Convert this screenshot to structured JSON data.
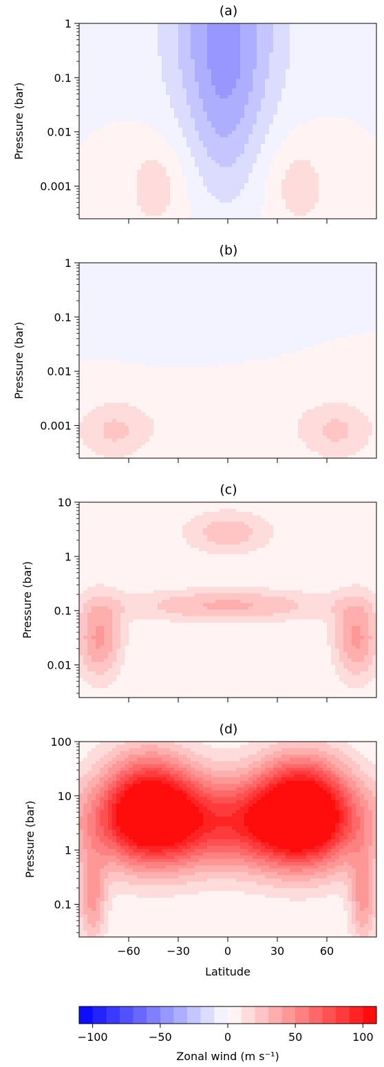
{
  "chart_data": [
    {
      "type": "heatmap",
      "title": "(a)",
      "ylabel": "Pressure (bar)",
      "xlabel": "",
      "xlim": [
        -90,
        90
      ],
      "ylim_bar": [
        1,
        0.00025
      ],
      "log_y": true,
      "y_ticks": [
        {
          "value": 0.001,
          "label": "0.001"
        },
        {
          "value": 0.01,
          "label": "0.01"
        },
        {
          "value": 0.1,
          "label": "0.1"
        },
        {
          "value": 1,
          "label": "1"
        }
      ],
      "x_ticks": [
        -60,
        -30,
        0,
        30,
        60
      ],
      "show_x_tick_labels": false,
      "features": [
        {
          "lat": -44,
          "p": 0.25,
          "u": 16,
          "slat": 13,
          "sdec": 0.6
        },
        {
          "lat": 43,
          "p": 0.25,
          "u": 16,
          "slat": 13,
          "sdec": 0.6
        },
        {
          "lat": -2,
          "p": 0.0003,
          "u": -40,
          "slat": 24,
          "sdec": 1.4
        },
        {
          "lat": -2,
          "p": 0.02,
          "u": -16,
          "slat": 14,
          "sdec": 1.1
        }
      ]
    },
    {
      "type": "heatmap",
      "title": "(b)",
      "ylabel": "Pressure (bar)",
      "xlabel": "",
      "xlim": [
        -90,
        90
      ],
      "ylim_bar": [
        1,
        0.00025
      ],
      "log_y": true,
      "y_ticks": [
        {
          "value": 0.001,
          "label": "0.001"
        },
        {
          "value": 0.01,
          "label": "0.01"
        },
        {
          "value": 0.1,
          "label": "0.1"
        },
        {
          "value": 1,
          "label": "1"
        }
      ],
      "x_ticks": [
        -60,
        -30,
        0,
        30,
        60
      ],
      "show_x_tick_labels": false,
      "features": [
        {
          "lat": -69,
          "p": 0.33,
          "u": 20,
          "slat": 16,
          "sdec": 0.4
        },
        {
          "lat": 66,
          "p": 0.33,
          "u": 20,
          "slat": 16,
          "sdec": 0.4
        },
        {
          "lat": 0,
          "p": 0.2,
          "u": 5,
          "slat": 60,
          "sdec": 0.35
        },
        {
          "lat": -40,
          "p": 0.001,
          "u": -4,
          "slat": 30,
          "sdec": 0.5
        }
      ]
    },
    {
      "type": "heatmap",
      "title": "(c)",
      "ylabel": "Pressure (bar)",
      "xlabel": "",
      "xlim": [
        -90,
        90
      ],
      "ylim_bar": [
        10,
        0.0025
      ],
      "log_y": true,
      "y_ticks": [
        {
          "value": 0.01,
          "label": "0.01"
        },
        {
          "value": 0.1,
          "label": "0.1"
        },
        {
          "value": 1,
          "label": "1"
        },
        {
          "value": 10,
          "label": "10"
        }
      ],
      "x_ticks": [
        -60,
        -30,
        0,
        30,
        60
      ],
      "show_x_tick_labels": false,
      "features": [
        {
          "lat": -78,
          "p": 0.8,
          "u": 42,
          "slat": 10,
          "sdec": 0.55
        },
        {
          "lat": 78,
          "p": 0.8,
          "u": 42,
          "slat": 10,
          "sdec": 0.55
        },
        {
          "lat": 0,
          "p": 0.2,
          "u": 32,
          "slat": 45,
          "sdec": 0.22
        },
        {
          "lat": 0,
          "p": 0.009,
          "u": 26,
          "slat": 20,
          "sdec": 0.3
        }
      ]
    },
    {
      "type": "heatmap",
      "title": "(d)",
      "ylabel": "Pressure (bar)",
      "xlabel": "Latitude",
      "xlim": [
        -90,
        90
      ],
      "ylim_bar": [
        100,
        0.025
      ],
      "log_y": true,
      "y_ticks": [
        {
          "value": 0.1,
          "label": "0.1"
        },
        {
          "value": 1,
          "label": "1"
        },
        {
          "value": 10,
          "label": "10"
        },
        {
          "value": 100,
          "label": "100"
        }
      ],
      "x_ticks": [
        -60,
        -30,
        0,
        30,
        60
      ],
      "show_x_tick_labels": true,
      "features": [
        {
          "lat": -48,
          "p": 0.4,
          "u": 96,
          "slat": 20,
          "sdec": 0.7
        },
        {
          "lat": 45,
          "p": 0.45,
          "u": 104,
          "slat": 20,
          "sdec": 0.7
        },
        {
          "lat": 0,
          "p": 0.8,
          "u": 78,
          "slat": 62,
          "sdec": 0.6
        },
        {
          "lat": -82,
          "p": 20,
          "u": 42,
          "slat": 6,
          "sdec": 0.6
        },
        {
          "lat": 82,
          "p": 20,
          "u": 42,
          "slat": 6,
          "sdec": 0.6
        }
      ]
    }
  ],
  "colorbar": {
    "label": "Zonal wind (m s⁻¹)",
    "range": [
      -110,
      110
    ],
    "ticks": [
      {
        "value": -100,
        "label": "−100"
      },
      {
        "value": -50,
        "label": "−50"
      },
      {
        "value": 0,
        "label": "0"
      },
      {
        "value": 50,
        "label": "50"
      },
      {
        "value": 100,
        "label": "100"
      }
    ],
    "colors": {
      "negative_end": "#0000ff",
      "zero": "#ffffff",
      "positive_end": "#ff0000"
    }
  }
}
